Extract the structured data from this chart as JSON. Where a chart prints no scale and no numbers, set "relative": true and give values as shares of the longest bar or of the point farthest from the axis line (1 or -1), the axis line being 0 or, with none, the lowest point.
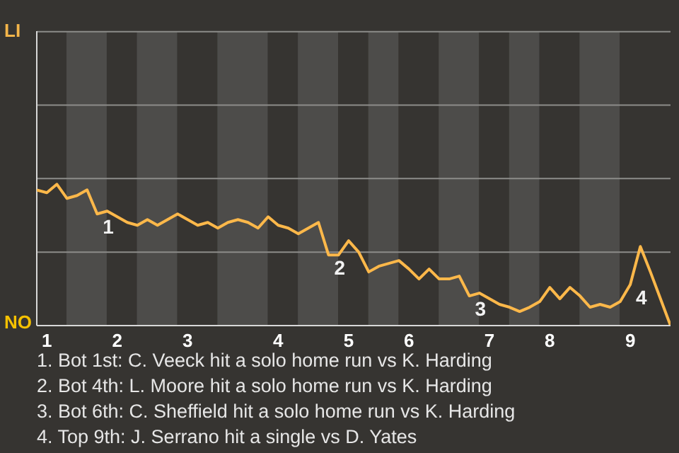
{
  "chart_data": {
    "type": "line",
    "relative": true,
    "categories": [
      null,
      "1",
      null,
      null,
      null,
      null,
      null,
      null,
      "2",
      null,
      null,
      null,
      null,
      null,
      null,
      "3",
      null,
      null,
      null,
      null,
      null,
      null,
      null,
      null,
      "4",
      null,
      null,
      null,
      null,
      null,
      null,
      "5",
      null,
      null,
      null,
      null,
      null,
      "6",
      null,
      null,
      null,
      null,
      null,
      null,
      null,
      "7",
      null,
      null,
      null,
      null,
      null,
      "8",
      null,
      null,
      null,
      null,
      null,
      null,
      null,
      "9",
      null,
      null,
      null,
      null
    ],
    "series": [
      {
        "color": "#fdb84a",
        "values": [
          0.96,
          0.94,
          1,
          0.9,
          0.92,
          0.96,
          0.79,
          0.81,
          0.77,
          0.73,
          0.71,
          0.75,
          0.71,
          0.75,
          0.79,
          0.75,
          0.71,
          0.73,
          0.69,
          0.73,
          0.75,
          0.73,
          0.69,
          0.77,
          0.71,
          0.69,
          0.65,
          0.69,
          0.73,
          0.5,
          0.5,
          0.6,
          0.52,
          0.38,
          0.42,
          0.44,
          0.46,
          0.4,
          0.33,
          0.4,
          0.33,
          0.33,
          0.35,
          0.21,
          0.23,
          0.19,
          0.15,
          0.13,
          0.1,
          0.13,
          0.17,
          0.27,
          0.19,
          0.27,
          0.21,
          0.13,
          0.15,
          0.13,
          0.17,
          0.29,
          0.56,
          0.38,
          0.19,
          0
        ]
      }
    ],
    "ref_lines": [
      {
        "axis": "y",
        "value": 0.52,
        "color": "#8d8c8a"
      },
      {
        "axis": "y",
        "value": 1.04,
        "color": "#8d8c8a"
      },
      {
        "axis": "y",
        "value": 1.56,
        "color": "#8d8c8a"
      },
      {
        "axis": "y",
        "value": 2.08,
        "color": "#8d8c8a"
      }
    ],
    "legend": false,
    "marker": "none",
    "line_style": "solid",
    "annotations": [
      "LI",
      "NO",
      "1",
      "2",
      "3",
      "4",
      "1. Bot 1st: C. Veeck hit a solo home run vs K. Harding",
      "2. Bot 4th: L. Moore hit a solo home run vs K. Harding",
      "3. Bot 6th: C. Sheffield hit a solo home run vs K. Harding",
      "4. Top 9th: J. Serrano hit a single vs D. Yates"
    ]
  }
}
